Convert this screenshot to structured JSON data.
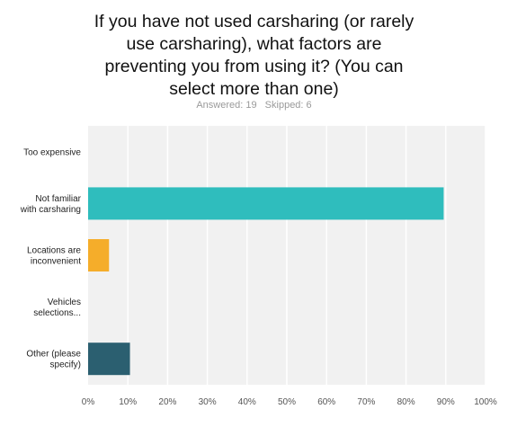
{
  "title_lines": [
    "If you have not used carsharing (or rarely",
    "use carsharing), what factors are",
    "preventing you from using it? (You can",
    "select more than one)"
  ],
  "meta": {
    "answered": "Answered: 19",
    "skipped": "Skipped: 6"
  },
  "chart_data": {
    "type": "bar",
    "orientation": "horizontal",
    "title": "If you have not used carsharing (or rarely use carsharing), what factors are preventing you from using it? (You can select more than one)",
    "categories": [
      [
        "Too expensive"
      ],
      [
        "Not familiar",
        "with carsharing"
      ],
      [
        "Locations are",
        "inconvenient"
      ],
      [
        "Vehicles",
        "selections..."
      ],
      [
        "Other (please",
        "specify)"
      ]
    ],
    "values": [
      0,
      89.47,
      5.26,
      0,
      10.53
    ],
    "colors": [
      "#2fbdbd",
      "#2fbdbd",
      "#f5ad2a",
      "#c8c8c8",
      "#2b5f70"
    ],
    "xlim": [
      0,
      100
    ],
    "xticks": [
      "0%",
      "10%",
      "20%",
      "30%",
      "40%",
      "50%",
      "60%",
      "70%",
      "80%",
      "90%",
      "100%"
    ],
    "grid": true,
    "xlabel": "",
    "ylabel": ""
  }
}
